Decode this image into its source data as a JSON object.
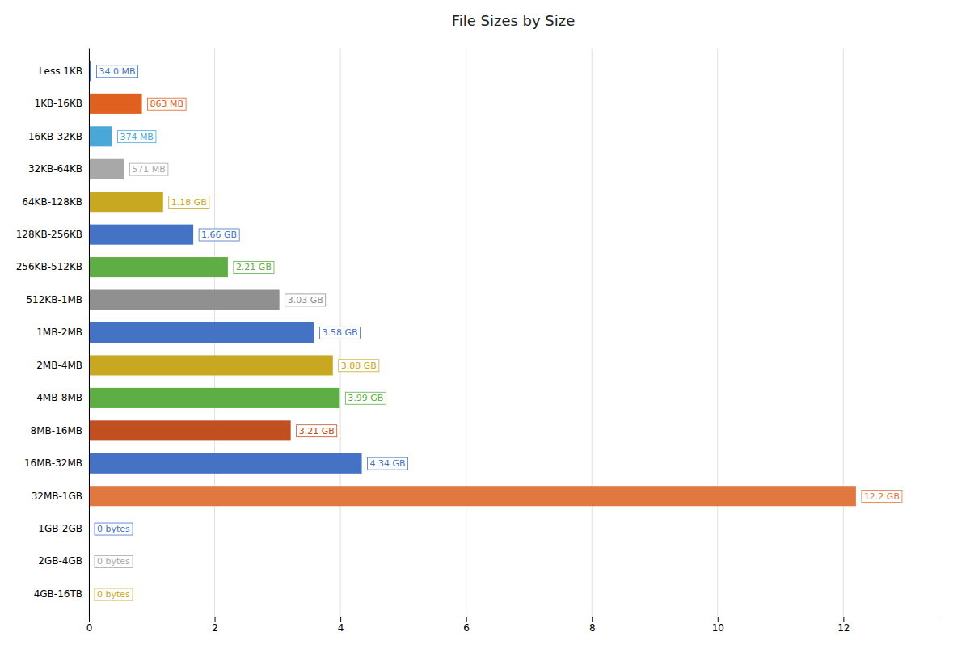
{
  "chart_data": {
    "type": "bar",
    "title": "File Sizes by Size",
    "orientation": "horizontal",
    "categories": [
      "Less 1KB",
      "1KB-16KB",
      "16KB-32KB",
      "32KB-64KB",
      "64KB-128KB",
      "128KB-256KB",
      "256KB-512KB",
      "512KB-1MB",
      "1MB-2MB",
      "2MB-4MB",
      "4MB-8MB",
      "8MB-16MB",
      "16MB-32MB",
      "32MB-1GB",
      "1GB-2GB",
      "2GB-4GB",
      "4GB-16TB"
    ],
    "values": [
      0.0332,
      0.8428,
      0.3652,
      0.5576,
      1.18,
      1.66,
      2.21,
      3.03,
      3.58,
      3.88,
      3.99,
      3.21,
      4.34,
      12.2,
      0.0,
      0.0,
      0.0
    ],
    "value_labels": [
      "34.0 MB",
      "863 MB",
      "374 MB",
      "571 MB",
      "1.18 GB",
      "1.66 GB",
      "2.21 GB",
      "3.03 GB",
      "3.58 GB",
      "3.88 GB",
      "3.99 GB",
      "3.21 GB",
      "4.34 GB",
      "12.2 GB",
      "0 bytes",
      "0 bytes",
      "0 bytes"
    ],
    "colors": [
      "#4472C4",
      "#E06020",
      "#4AA8D8",
      "#A8A8A8",
      "#C8A820",
      "#4472C4",
      "#5FAD45",
      "#909090",
      "#4472C4",
      "#C8A820",
      "#5FAD45",
      "#C05020",
      "#4472C4",
      "#E07840",
      "#4472C4",
      "#A8A8A8",
      "#C8A820"
    ],
    "xlim": [
      0,
      13.5
    ],
    "xticks": [
      0,
      2,
      4,
      6,
      8,
      10,
      12
    ],
    "grid": true,
    "data_labels": true
  }
}
